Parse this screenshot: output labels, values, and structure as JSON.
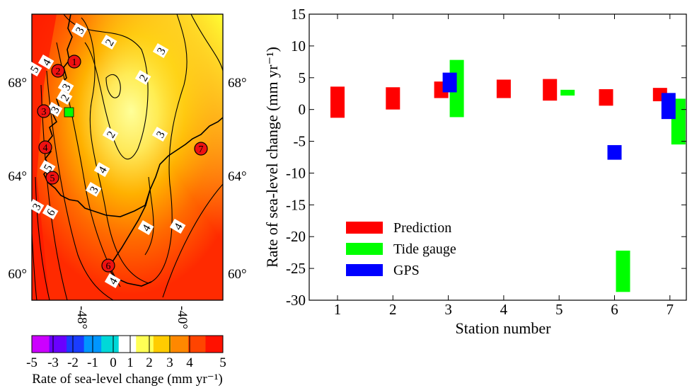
{
  "chart_data": [
    {
      "type": "map",
      "panel": "left",
      "map": {
        "lat_labels_left": [
          "68°",
          "64°",
          "60°"
        ],
        "lat_labels_right": [
          "68°",
          "64°",
          "60°"
        ],
        "lon_labels": [
          "-48°",
          "-40°"
        ],
        "contour_labels": [
          "3",
          "2",
          "3",
          "4",
          "5",
          "2",
          "3",
          "2",
          "3",
          "2",
          "3",
          "4",
          "3",
          "4",
          "4",
          "5",
          "6",
          "3",
          "4"
        ],
        "stations": [
          "1",
          "2",
          "3",
          "4",
          "5",
          "6",
          "7"
        ],
        "tide_gauge_marker": "green-square"
      },
      "colorbar": {
        "ticks": [
          "-5",
          "-3",
          "-2",
          "-1",
          "0",
          "1",
          "2",
          "3",
          "4",
          "5"
        ],
        "colors": [
          "#cc00ff",
          "#6a00ff",
          "#1a3cff",
          "#0096ff",
          "#00d8d8",
          "#ffffff",
          "#ffff55",
          "#ffcc00",
          "#ff8800",
          "#ff4400",
          "#ff1100"
        ],
        "label": "Rate of sea-level change (mm yr⁻¹)"
      }
    },
    {
      "type": "bar",
      "panel": "right",
      "categories": [
        "1",
        "2",
        "3",
        "4",
        "5",
        "6",
        "7"
      ],
      "xlabel": "Station number",
      "ylabel": "Rate of sea-level change (mm yr⁻¹)",
      "ylim": [
        -30,
        15
      ],
      "yticks": [
        "15",
        "10",
        "5",
        "0",
        "-5",
        "-10",
        "-15",
        "-20",
        "-25",
        "-30"
      ],
      "legend_position": "lower-left",
      "series": [
        {
          "name": "Prediction",
          "color": "#ff0000",
          "ranges": [
            [
              -1.3,
              3.6
            ],
            [
              0.0,
              3.5
            ],
            [
              1.8,
              4.4
            ],
            [
              1.8,
              4.7
            ],
            [
              1.4,
              4.8
            ],
            [
              0.6,
              3.2
            ],
            [
              1.3,
              3.4
            ]
          ]
        },
        {
          "name": "Tide gauge",
          "color": "#00ff00",
          "ranges": [
            null,
            null,
            [
              -1.2,
              7.8
            ],
            null,
            [
              2.2,
              3.1
            ],
            [
              -28.7,
              -22.2
            ],
            [
              -5.5,
              1.7
            ]
          ]
        },
        {
          "name": "GPS",
          "color": "#0000ff",
          "ranges": [
            null,
            null,
            [
              2.7,
              5.8
            ],
            null,
            null,
            [
              -7.9,
              -5.6
            ],
            [
              -1.5,
              2.6
            ]
          ]
        }
      ]
    }
  ]
}
